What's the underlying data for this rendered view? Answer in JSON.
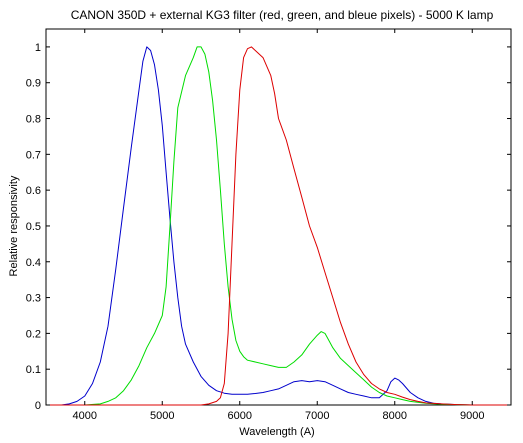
{
  "chart_data": {
    "type": "line",
    "title": "CANON 350D + external KG3 filter (red, green, and bleue pixels) - 5000 K lamp",
    "xlabel": "Wavelength (A)",
    "ylabel": "Relative responsivity",
    "xlim": [
      3500,
      9500
    ],
    "ylim": [
      0,
      1.05
    ],
    "xticks": [
      4000,
      5000,
      6000,
      7000,
      8000,
      9000
    ],
    "xtick_labels": [
      "4000",
      "5000",
      "6000",
      "7000",
      "8000",
      "9000"
    ],
    "yticks": [
      0,
      0.1,
      0.2,
      0.3,
      0.4,
      0.5,
      0.6,
      0.7,
      0.8,
      0.9,
      1
    ],
    "ytick_labels": [
      "0",
      "0.1",
      "0.2",
      "0.3",
      "0.4",
      "0.5",
      "0.6",
      "0.7",
      "0.8",
      "0.9",
      "1"
    ],
    "grid": false,
    "legend": "none",
    "series": [
      {
        "color": "#0000cc",
        "x": [
          3500,
          3700,
          3800,
          3900,
          4000,
          4100,
          4200,
          4300,
          4400,
          4500,
          4600,
          4700,
          4750,
          4800,
          4850,
          4900,
          4950,
          5000,
          5050,
          5100,
          5150,
          5200,
          5250,
          5300,
          5400,
          5500,
          5600,
          5700,
          5800,
          5900,
          6000,
          6100,
          6200,
          6300,
          6400,
          6500,
          6600,
          6700,
          6800,
          6900,
          7000,
          7100,
          7200,
          7300,
          7400,
          7500,
          7600,
          7700,
          7800,
          7900,
          7950,
          8000,
          8050,
          8100,
          8200,
          8300,
          8400,
          8500,
          8600,
          8800,
          9000,
          9200,
          9500
        ],
        "y": [
          0.0,
          0.0,
          0.003,
          0.01,
          0.025,
          0.06,
          0.12,
          0.22,
          0.38,
          0.55,
          0.72,
          0.88,
          0.96,
          1.0,
          0.99,
          0.95,
          0.88,
          0.78,
          0.65,
          0.52,
          0.4,
          0.3,
          0.22,
          0.17,
          0.12,
          0.08,
          0.055,
          0.04,
          0.033,
          0.03,
          0.03,
          0.03,
          0.032,
          0.035,
          0.04,
          0.045,
          0.055,
          0.065,
          0.068,
          0.065,
          0.068,
          0.065,
          0.055,
          0.045,
          0.035,
          0.03,
          0.025,
          0.02,
          0.02,
          0.04,
          0.065,
          0.075,
          0.07,
          0.06,
          0.035,
          0.02,
          0.01,
          0.005,
          0.003,
          0.001,
          0.0,
          0.0,
          0.0
        ]
      },
      {
        "color": "#00dd00",
        "x": [
          3500,
          4000,
          4200,
          4300,
          4400,
          4500,
          4600,
          4700,
          4800,
          4900,
          5000,
          5050,
          5100,
          5150,
          5200,
          5300,
          5400,
          5450,
          5500,
          5550,
          5600,
          5650,
          5700,
          5750,
          5800,
          5850,
          5900,
          5950,
          6000,
          6050,
          6100,
          6200,
          6300,
          6400,
          6500,
          6600,
          6700,
          6800,
          6900,
          7000,
          7050,
          7100,
          7150,
          7200,
          7300,
          7400,
          7500,
          7600,
          7700,
          7800,
          7900,
          8000,
          8100,
          8200,
          8400,
          8600,
          9000,
          9500
        ],
        "y": [
          0.0,
          0.0,
          0.003,
          0.01,
          0.02,
          0.04,
          0.07,
          0.11,
          0.16,
          0.2,
          0.25,
          0.33,
          0.5,
          0.68,
          0.83,
          0.92,
          0.97,
          1.0,
          1.0,
          0.98,
          0.93,
          0.85,
          0.74,
          0.6,
          0.45,
          0.33,
          0.24,
          0.18,
          0.15,
          0.135,
          0.125,
          0.12,
          0.115,
          0.11,
          0.105,
          0.105,
          0.12,
          0.14,
          0.17,
          0.195,
          0.205,
          0.2,
          0.18,
          0.16,
          0.13,
          0.11,
          0.09,
          0.07,
          0.05,
          0.035,
          0.025,
          0.02,
          0.015,
          0.01,
          0.005,
          0.002,
          0.0,
          0.0
        ]
      },
      {
        "color": "#dd0000",
        "x": [
          3500,
          5000,
          5500,
          5600,
          5700,
          5750,
          5800,
          5850,
          5900,
          5950,
          6000,
          6050,
          6100,
          6150,
          6200,
          6300,
          6400,
          6450,
          6500,
          6600,
          6700,
          6800,
          6900,
          7000,
          7100,
          7200,
          7300,
          7400,
          7500,
          7600,
          7700,
          7800,
          7900,
          8000,
          8100,
          8200,
          8300,
          8400,
          8600,
          8800,
          9000,
          9500
        ],
        "y": [
          0.0,
          0.0,
          0.0,
          0.003,
          0.01,
          0.02,
          0.06,
          0.2,
          0.45,
          0.7,
          0.88,
          0.97,
          0.995,
          1.0,
          0.99,
          0.97,
          0.92,
          0.87,
          0.8,
          0.74,
          0.66,
          0.58,
          0.5,
          0.44,
          0.37,
          0.3,
          0.23,
          0.17,
          0.12,
          0.085,
          0.06,
          0.045,
          0.035,
          0.03,
          0.022,
          0.015,
          0.01,
          0.006,
          0.003,
          0.001,
          0.0,
          0.0
        ]
      }
    ]
  }
}
